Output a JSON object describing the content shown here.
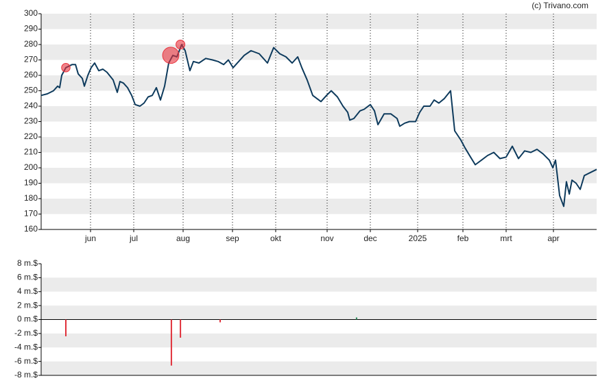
{
  "credit": "(c) Trivano.com",
  "chart_data": [
    {
      "type": "line",
      "xlim": [
        0,
        270
      ],
      "xticks": [
        {
          "value": 24,
          "label": "jun"
        },
        {
          "value": 45,
          "label": "jul"
        },
        {
          "value": 69,
          "label": "aug"
        },
        {
          "value": 93,
          "label": "sep"
        },
        {
          "value": 114,
          "label": "okt"
        },
        {
          "value": 139,
          "label": "nov"
        },
        {
          "value": 160,
          "label": "dec"
        },
        {
          "value": 183,
          "label": "2025"
        },
        {
          "value": 205,
          "label": "feb"
        },
        {
          "value": 226,
          "label": "mrt"
        },
        {
          "value": 249,
          "label": "apr"
        }
      ],
      "ylim": [
        160,
        300
      ],
      "yticks": [
        160,
        170,
        180,
        190,
        200,
        210,
        220,
        230,
        240,
        250,
        260,
        270,
        280,
        290,
        300
      ],
      "grid": true,
      "color": "#0d3a5c",
      "x": [
        0,
        3,
        6,
        8,
        9,
        10,
        12,
        15,
        16.7,
        18,
        20,
        21,
        22.7,
        24.3,
        26,
        28,
        30,
        32,
        35,
        37,
        38.3,
        40,
        42,
        44,
        45.7,
        48,
        50,
        52,
        54,
        56,
        58,
        60,
        62,
        64,
        66,
        68.3,
        70,
        72.3,
        74,
        76.7,
        80,
        83.3,
        86,
        88.7,
        91,
        93.3,
        96,
        98.7,
        102,
        106,
        110,
        113,
        116,
        119,
        122,
        124.7,
        126.7,
        129.3,
        132,
        136,
        138.7,
        141,
        144,
        146.7,
        149,
        150,
        152,
        155,
        157,
        160,
        162,
        163.7,
        166.7,
        170,
        173,
        174.3,
        176.7,
        179,
        182,
        184,
        186,
        189,
        191,
        193.3,
        196,
        199,
        201,
        204,
        206,
        208.7,
        211,
        214,
        217,
        220,
        223,
        226,
        229,
        232,
        235,
        238,
        241,
        244,
        247,
        248.7,
        250,
        252,
        254,
        255.3,
        256.7,
        258,
        260,
        262,
        264,
        267,
        270
      ],
      "values": [
        247,
        248,
        250,
        253,
        252,
        260,
        265,
        267,
        267,
        261,
        258,
        253,
        260,
        265,
        268,
        263,
        264,
        262,
        257,
        249,
        256,
        255,
        252,
        247,
        241,
        240,
        242,
        246,
        247,
        252,
        244,
        253,
        268,
        273,
        272,
        280,
        276,
        263,
        269,
        268,
        271,
        270,
        269,
        267,
        270,
        265,
        269,
        273,
        276,
        274,
        268,
        278,
        274,
        272,
        268,
        272,
        265,
        257,
        247,
        243,
        247,
        250,
        246,
        240,
        236,
        231,
        232,
        237,
        238,
        241,
        237,
        228,
        235,
        235,
        232,
        227,
        229,
        230,
        230,
        236,
        240,
        240,
        244,
        242,
        245,
        250,
        224,
        218,
        213,
        207,
        202,
        205,
        208,
        210,
        206,
        207,
        214,
        206,
        211,
        210,
        212,
        209,
        205,
        200,
        205,
        182,
        175,
        191,
        183,
        192,
        190,
        186,
        195,
        197,
        199
      ],
      "bubbles": {
        "x": [
          12,
          63,
          67.7
        ],
        "values": [
          265,
          273,
          280
        ],
        "sizes": [
          2.4,
          6.6,
          2.6
        ],
        "color": "#e8323c"
      }
    },
    {
      "type": "bar",
      "xlim": [
        0,
        270
      ],
      "ylim": [
        -8,
        8
      ],
      "yticks": [
        {
          "value": -8,
          "label": "-8 m.$"
        },
        {
          "value": -6,
          "label": "-6 m.$"
        },
        {
          "value": -4,
          "label": "-4 m.$"
        },
        {
          "value": -2,
          "label": "-2 m.$"
        },
        {
          "value": 0,
          "label": "0 m.$"
        },
        {
          "value": 2,
          "label": "2 m.$"
        },
        {
          "value": 4,
          "label": "4 m.$"
        },
        {
          "value": 6,
          "label": "6 m.$"
        },
        {
          "value": 8,
          "label": "8 m.$"
        }
      ],
      "grid": true,
      "x": [
        12,
        63.3,
        67.7,
        87,
        153.3
      ],
      "values": [
        -2.4,
        -6.6,
        -2.6,
        -0.4,
        0.3
      ],
      "colors": [
        "#e0303a",
        "#e0303a",
        "#e0303a",
        "#e0303a",
        "#2a8a5a"
      ]
    }
  ]
}
